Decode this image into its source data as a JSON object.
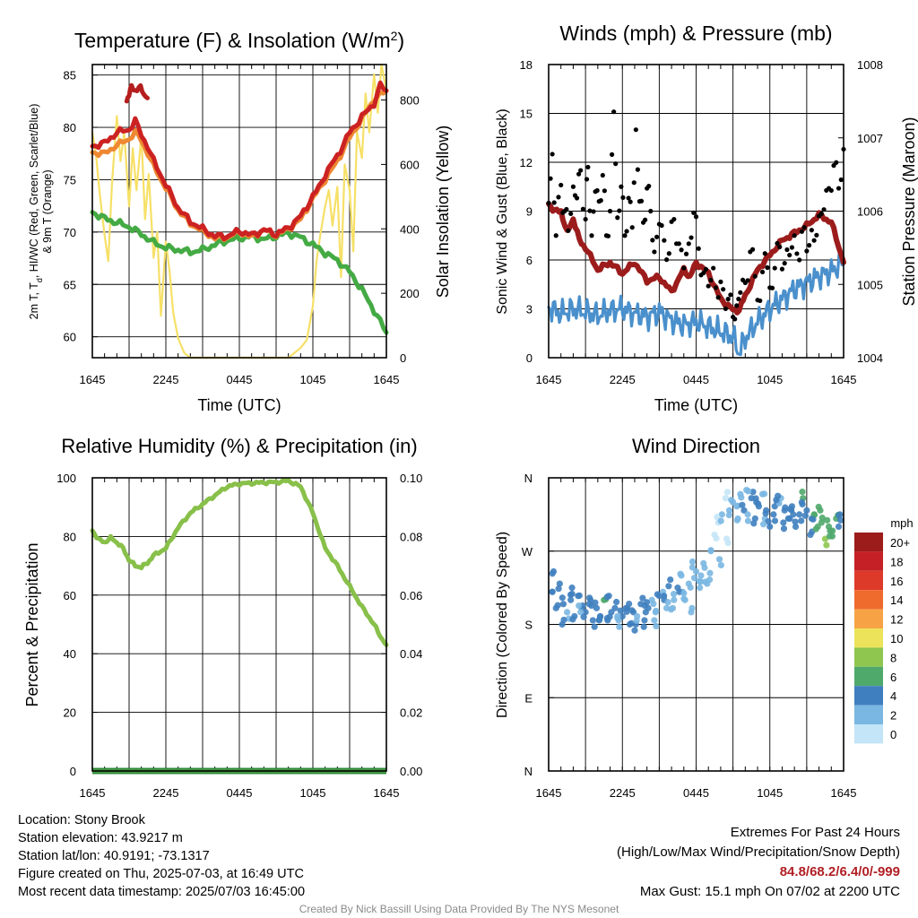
{
  "colors": {
    "temp": "#cc2222",
    "heat_index": "#b51e1e",
    "dewpoint": "#44aa44",
    "temp9m": "#ee8833",
    "solar": "#f6e067",
    "wind": "#4a90cc",
    "gust": "#000000",
    "pressure": "#9c1c1c",
    "rh": "#88c04a",
    "precip": "#2f8b3a"
  },
  "time_ticks": [
    "1645",
    "2245",
    "0445",
    "1045",
    "1645"
  ],
  "chart_data": [
    {
      "id": "temperature",
      "type": "line",
      "title": "Temperature (F) & Insolation (W/m",
      "title_sup": "2",
      "title_end": ")",
      "xlabel": "Time (UTC)",
      "ylabel_left_line1": "2m T, T",
      "ylabel_left_sub": "d",
      "ylabel_left_line1b": ", HI/WC (Red, Green, Scarlet/Blue)",
      "ylabel_left_line2": "& 9m T (Orange)",
      "ylabel_right": "Solar Insolation (Yellow)",
      "x_hours": [
        0,
        24
      ],
      "ylim": [
        58,
        86
      ],
      "yticks": [
        60,
        65,
        70,
        75,
        80,
        85
      ],
      "y2lim": [
        0,
        910
      ],
      "y2ticks": [
        0,
        200,
        400,
        600,
        800
      ],
      "series": [
        {
          "key": "temp",
          "x": [
            0,
            1,
            2,
            3,
            3.5,
            4,
            4.5,
            5,
            6,
            7,
            8,
            9,
            10,
            11,
            12,
            13,
            14,
            15,
            16,
            17,
            18,
            18.5,
            19,
            20,
            21,
            22,
            23,
            23.5,
            24
          ],
          "y": [
            78.2,
            78.5,
            79.5,
            79.8,
            80.6,
            79.3,
            78.2,
            76.8,
            74.5,
            72.3,
            71.0,
            70.3,
            69.6,
            69.6,
            70.1,
            69.7,
            70.2,
            69.8,
            70.4,
            71.5,
            73.4,
            74.3,
            75.5,
            77.3,
            79.5,
            81.0,
            82.3,
            84.0,
            83.5
          ]
        },
        {
          "key": "heat_index",
          "x": [
            2.8,
            3.0,
            3.2,
            3.5,
            3.8,
            4.2,
            4.5
          ],
          "y": [
            82.5,
            83.3,
            83.8,
            83.5,
            83.9,
            83.2,
            82.8
          ]
        },
        {
          "key": "temp9m",
          "x": [
            0,
            1,
            2,
            3,
            3.5,
            4,
            5,
            6,
            7,
            8,
            9,
            10,
            11,
            12,
            13,
            14,
            15,
            16,
            17,
            18,
            19,
            20,
            21,
            22,
            23,
            24
          ],
          "y": [
            77.6,
            77.5,
            78.3,
            78.9,
            79.5,
            78.8,
            76.3,
            74.2,
            72.1,
            70.8,
            70.1,
            69.4,
            69.5,
            70.0,
            69.5,
            70.2,
            69.7,
            70.3,
            71.2,
            73.2,
            75.0,
            76.8,
            79.0,
            80.8,
            82.7,
            83.5
          ]
        },
        {
          "key": "dewpoint",
          "x": [
            0,
            1,
            2,
            3,
            4,
            5,
            6,
            7,
            8,
            9,
            10,
            11,
            12,
            13,
            14,
            15,
            16,
            17,
            18,
            19,
            20,
            21,
            22,
            23,
            24
          ],
          "y": [
            71.9,
            71.3,
            70.9,
            70.5,
            69.8,
            69.0,
            68.5,
            68.3,
            68.1,
            68.3,
            68.8,
            69.2,
            69.4,
            69.6,
            69.3,
            69.6,
            69.9,
            69.5,
            68.8,
            68.0,
            67.3,
            66.2,
            64.5,
            62.5,
            60.4
          ]
        },
        {
          "key": "solar",
          "x": [
            0,
            0.3,
            0.6,
            1.0,
            1.3,
            1.6,
            2.0,
            2.3,
            2.6,
            3.0,
            3.3,
            3.6,
            4.0,
            4.3,
            4.6,
            5.0,
            5.3,
            5.6,
            6.0,
            6.3,
            6.6,
            7.0,
            7.5,
            8,
            10,
            12,
            14,
            16,
            17,
            17.5,
            18,
            18.3,
            18.6,
            19,
            19.3,
            19.6,
            20,
            20.3,
            20.6,
            21,
            21.3,
            21.6,
            22,
            22.3,
            22.6,
            23,
            23.3,
            23.6,
            24
          ],
          "y": [
            700,
            630,
            510,
            380,
            300,
            540,
            750,
            610,
            700,
            470,
            650,
            520,
            690,
            430,
            570,
            310,
            390,
            130,
            360,
            270,
            140,
            60,
            15,
            0,
            0,
            0,
            0,
            0,
            30,
            55,
            160,
            300,
            380,
            470,
            520,
            410,
            530,
            250,
            600,
            520,
            330,
            700,
            620,
            820,
            700,
            880,
            760,
            910,
            830
          ]
        }
      ]
    },
    {
      "id": "winds",
      "type": "line",
      "title": "Winds (mph) & Pressure (mb)",
      "xlabel": "Time (UTC)",
      "ylabel_left": "Sonic Wind & Gust (Blue, Black)",
      "ylabel_right": "Station Pressure (Maroon)",
      "x_hours": [
        0,
        24
      ],
      "ylim": [
        0,
        18
      ],
      "yticks": [
        0,
        3,
        6,
        9,
        12,
        15,
        18
      ],
      "y2lim": [
        1004,
        1008
      ],
      "y2ticks": [
        1004,
        1005,
        1006,
        1007,
        1008
      ],
      "series": [
        {
          "key": "wind",
          "x": [
            0,
            1,
            2,
            3,
            4,
            5,
            6,
            7,
            8,
            9,
            10,
            11,
            12,
            13,
            14,
            15,
            15.5,
            16,
            17,
            18,
            19,
            20,
            21,
            22,
            23,
            24
          ],
          "y": [
            3.1,
            2.7,
            3.0,
            2.8,
            2.6,
            2.9,
            3.0,
            2.7,
            2.5,
            2.8,
            2.3,
            2.0,
            2.2,
            1.9,
            1.6,
            1.3,
            0.3,
            1.2,
            2.2,
            3.0,
            3.6,
            4.2,
            4.6,
            5.0,
            5.3,
            5.9
          ]
        },
        {
          "key": "pressure",
          "x": [
            0,
            0.5,
            1,
            1.5,
            2,
            2.5,
            3,
            4,
            5,
            6,
            7,
            8,
            9,
            10,
            11,
            11.5,
            12,
            13,
            14,
            15,
            15.5,
            16,
            17,
            18,
            19,
            20,
            21,
            22,
            23,
            24
          ],
          "y": [
            1006.1,
            1006.0,
            1006.0,
            1005.7,
            1005.9,
            1005.6,
            1005.5,
            1005.2,
            1005.3,
            1005.15,
            1005.3,
            1005.05,
            1005.1,
            1004.9,
            1005.2,
            1005.1,
            1005.3,
            1005.15,
            1004.8,
            1004.65,
            1004.65,
            1004.85,
            1005.2,
            1005.4,
            1005.6,
            1005.7,
            1005.8,
            1005.95,
            1005.85,
            1005.3
          ]
        },
        {
          "key": "gust",
          "x": [
            0,
            0.3,
            0.6,
            1,
            1.3,
            1.6,
            2,
            2.3,
            2.6,
            3,
            3.2,
            3.5,
            3.8,
            4.1,
            4.4,
            4.7,
            5,
            5.3,
            5.6,
            5.9,
            6.2,
            6.5,
            6.8,
            7.1,
            7.4,
            7.7,
            8,
            8.3,
            8.6,
            9,
            9.4,
            9.8,
            10.2,
            10.6,
            11,
            11.4,
            11.8,
            12.2,
            12.6,
            13,
            13.4,
            13.8,
            14.2,
            14.6,
            15,
            15.3,
            15.6,
            16,
            16.4,
            16.8,
            17.2,
            17.6,
            18,
            18.4,
            18.8,
            19.2,
            19.6,
            20,
            20.4,
            20.8,
            21.2,
            21.6,
            22,
            22.4,
            22.8,
            23.2,
            23.6,
            24
          ],
          "y": [
            9.5,
            12.5,
            7.5,
            10.6,
            9,
            7.8,
            10.5,
            9.8,
            11.5,
            8.5,
            11.7,
            7.5,
            10.2,
            9.6,
            11.2,
            7.5,
            9,
            15.1,
            8.6,
            10.5,
            7.5,
            9.8,
            8,
            14,
            9.6,
            8.3,
            10.4,
            9,
            6.5,
            8.2,
            7.2,
            6.4,
            8.5,
            7,
            5.5,
            7,
            8.9,
            6.7,
            5.2,
            4.4,
            5.5,
            3.7,
            4.2,
            3.6,
            2.5,
            3.2,
            4,
            4.6,
            6.5,
            5,
            3.5,
            6.4,
            4.3,
            5.5,
            6.8,
            5.8,
            6.3,
            7.5,
            6,
            8,
            6.9,
            7.2,
            8.7,
            9.1,
            10.4,
            11.8,
            10.4,
            12.8
          ]
        }
      ]
    },
    {
      "id": "humidity",
      "type": "line",
      "title": "Relative Humidity (%) & Precipitation (in)",
      "ylabel_left": "Percent & Precipitation",
      "x_hours": [
        0,
        24
      ],
      "ylim": [
        0,
        100
      ],
      "yticks": [
        0,
        20,
        40,
        60,
        80,
        100
      ],
      "y2lim": [
        0,
        0.1
      ],
      "y2ticks": [
        "0.00",
        "0.02",
        "0.04",
        "0.06",
        "0.08",
        "0.10"
      ],
      "series": [
        {
          "key": "rh",
          "x": [
            0,
            0.5,
            1,
            1.5,
            2,
            2.5,
            3,
            3.5,
            4,
            4.5,
            5,
            6,
            7,
            8,
            9,
            10,
            11,
            12,
            13,
            14,
            15,
            16,
            17,
            18,
            19,
            20,
            21,
            22,
            23,
            23.5,
            24
          ],
          "y": [
            82,
            79,
            78,
            79.5,
            78,
            76,
            72,
            70,
            69.5,
            71,
            73.5,
            76,
            83,
            88,
            91,
            94,
            97,
            98,
            98.2,
            98.4,
            98.5,
            99,
            97,
            88,
            76,
            70,
            63,
            56,
            50,
            46,
            43
          ]
        },
        {
          "key": "precip",
          "x": [
            0,
            24
          ],
          "y": [
            0,
            0
          ]
        }
      ]
    },
    {
      "id": "wind_direction",
      "type": "scatter",
      "title": "Wind Direction",
      "ylabel_left": "Direction (Colored By Speed)",
      "x_hours": [
        0,
        24
      ],
      "ylim": [
        0,
        360
      ],
      "yticks": [
        "N",
        "E",
        "S",
        "W",
        "N"
      ],
      "legend_unit": "mph",
      "legend_labels": [
        "20+",
        "18",
        "16",
        "14",
        "12",
        "10",
        "8",
        "6",
        "4",
        "2",
        "0"
      ],
      "legend_colors": [
        "#9c1c1c",
        "#c42026",
        "#dd3a2a",
        "#ef6a2d",
        "#f7a345",
        "#ece35a",
        "#8ec64f",
        "#4fa96b",
        "#3f7fbf",
        "#7ab7e2",
        "#c4e5f7"
      ],
      "points": {
        "hours": [
          0.3,
          0.6,
          0.9,
          1.2,
          1.5,
          1.8,
          2.1,
          2.4,
          2.7,
          3.0,
          3.3,
          3.6,
          3.9,
          4.2,
          4.5,
          4.8,
          5.1,
          5.4,
          5.7,
          6.0,
          6.3,
          6.6,
          6.9,
          7.2,
          7.5,
          7.8,
          8.1,
          8.4,
          8.7,
          9.0,
          9.3,
          9.6,
          9.9,
          10.2,
          10.5,
          10.8,
          11.1,
          11.4,
          11.7,
          12.0,
          12.3,
          12.6,
          12.9,
          13.2,
          13.5,
          13.8,
          14.1,
          14.4,
          14.7,
          15.0,
          15.3,
          15.6,
          15.9,
          16.2,
          16.5,
          16.8,
          17.1,
          17.4,
          17.7,
          18.0,
          18.3,
          18.6,
          18.9,
          19.2,
          19.5,
          19.8,
          20.1,
          20.4,
          20.7,
          21.0,
          21.3,
          21.6,
          21.9,
          22.2,
          22.5,
          22.8,
          23.1,
          23.4,
          23.7,
          0.4,
          1.1,
          1.9,
          2.6,
          3.4,
          4.1,
          4.9,
          5.6,
          6.4,
          7.1,
          7.9,
          8.6,
          9.4,
          10.1,
          10.9,
          11.6,
          12.4,
          13.1,
          13.9,
          14.6,
          15.4,
          16.1,
          16.9,
          17.6,
          18.4,
          19.1,
          19.9,
          20.6,
          21.4,
          22.1,
          22.9,
          23.6
        ],
        "deg": [
          220,
          200,
          230,
          205,
          195,
          210,
          190,
          215,
          200,
          195,
          205,
          185,
          200,
          190,
          210,
          185,
          195,
          200,
          185,
          190,
          200,
          180,
          195,
          190,
          205,
          185,
          200,
          210,
          195,
          215,
          220,
          200,
          235,
          210,
          225,
          240,
          210,
          230,
          250,
          245,
          225,
          255,
          230,
          270,
          290,
          305,
          315,
          335,
          320,
          330,
          325,
          340,
          320,
          315,
          335,
          310,
          325,
          340,
          320,
          300,
          315,
          330,
          335,
          320,
          310,
          325,
          300,
          315,
          335,
          320,
          290,
          315,
          300,
          305,
          285,
          300,
          295,
          310,
          315,
          245,
          180,
          225,
          195,
          210,
          185,
          215,
          190,
          200,
          180,
          195,
          185,
          210,
          200,
          220,
          195,
          240,
          235,
          260,
          280,
          310,
          345,
          330,
          310,
          325,
          305,
          315,
          330,
          310,
          320,
          295,
          300
        ],
        "speed": [
          4,
          3,
          4,
          3,
          2,
          3,
          4,
          3,
          3,
          4,
          3,
          4,
          3,
          4,
          6,
          3,
          4,
          3,
          2,
          3,
          3,
          4,
          3,
          2,
          3,
          4,
          3,
          2,
          2,
          3,
          2,
          2,
          3,
          2,
          3,
          2,
          1,
          2,
          2,
          1,
          2,
          1,
          1,
          1,
          0,
          0,
          1,
          0,
          1,
          1,
          2,
          2,
          3,
          2,
          3,
          4,
          3,
          2,
          3,
          4,
          4,
          3,
          2,
          3,
          4,
          4,
          3,
          4,
          5,
          3,
          4,
          6,
          6,
          6,
          7,
          6,
          6,
          5,
          3,
          4,
          3,
          3,
          2,
          3,
          4,
          3,
          2,
          3,
          4,
          3,
          2,
          3,
          2,
          2,
          1,
          2,
          2,
          1,
          0,
          1,
          2,
          3,
          2,
          3,
          4,
          3,
          4,
          4,
          5,
          6,
          4
        ]
      }
    }
  ],
  "info": {
    "location": "Location: Stony Brook",
    "elevation": "Station elevation: 43.9217 m",
    "latlon": "Station lat/lon: 40.9191; -73.1317",
    "created": "Figure created on Thu, 2025-07-03, at 16:49 UTC",
    "recent": "Most recent data timestamp: 2025/07/03 16:45:00"
  },
  "extremes": {
    "title": "Extremes For Past 24 Hours",
    "subtitle": "(High/Low/Max Wind/Precipitation/Snow Depth)",
    "values": "84.8/68.2/6.4/0/-999",
    "gust": "Max Gust: 15.1 mph On 07/02 at 2200 UTC"
  },
  "credit": "Created By Nick Bassill Using Data Provided By The NYS Mesonet"
}
